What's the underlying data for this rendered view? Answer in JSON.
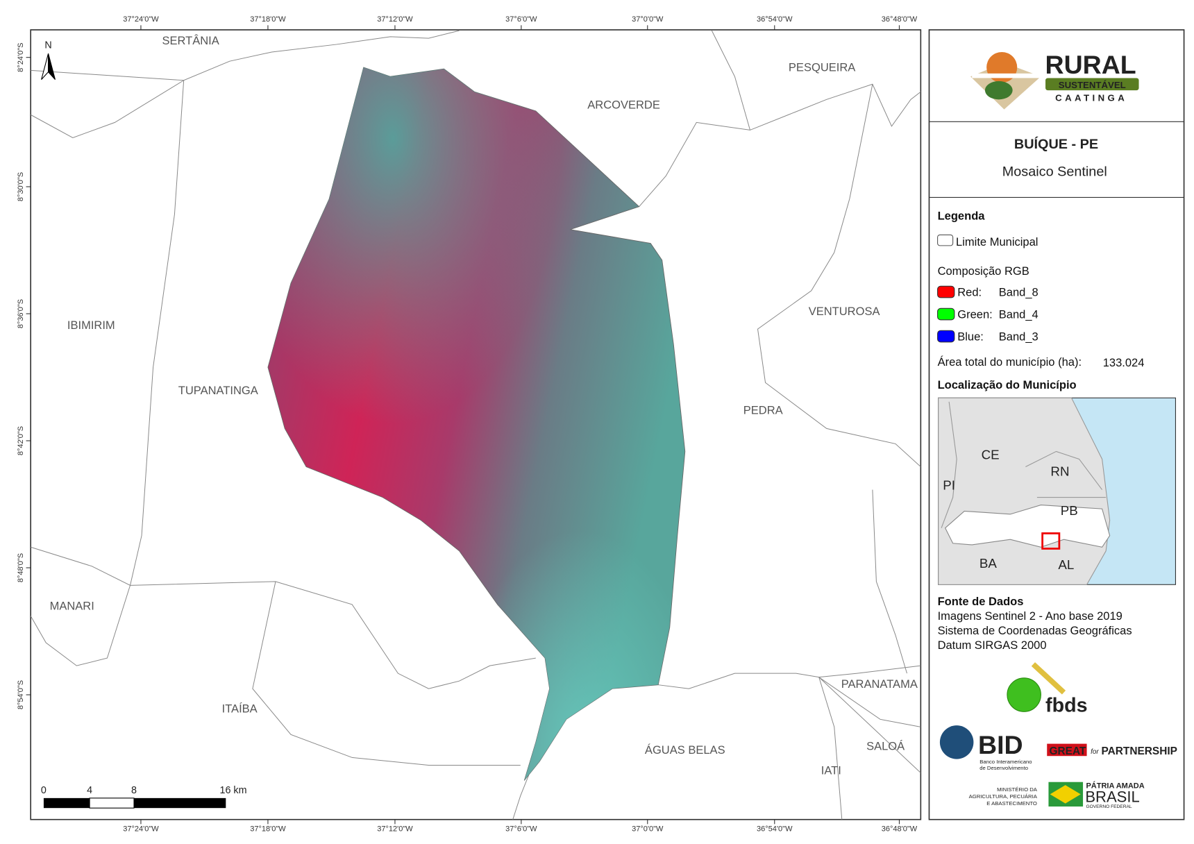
{
  "map": {
    "north_arrow": "N",
    "top_coordinates": [
      "37°24'0\"W",
      "37°18'0\"W",
      "37°12'0\"W",
      "37°6'0\"W",
      "37°0'0\"W",
      "36°54'0\"W",
      "36°48'0\"W"
    ],
    "bottom_coordinates": [
      "37°24'0\"W",
      "37°18'0\"W",
      "37°12'0\"W",
      "37°6'0\"W",
      "37°0'0\"W",
      "36°54'0\"W",
      "36°48'0\"W"
    ],
    "left_coordinates": [
      "8°24'0\"S",
      "8°30'0\"S",
      "8°36'0\"S",
      "8°42'0\"S",
      "8°48'0\"S",
      "8°54'0\"S"
    ],
    "place_labels": [
      "SERTÂNIA",
      "PESQUEIRA",
      "ARCOVERDE",
      "IBIMIRIM",
      "VENTUROSA",
      "TUPANATINGA",
      "PEDRA",
      "MANARI",
      "PARANATAMA",
      "ITAÍBA",
      "ÁGUAS BELAS",
      "SALOÁ",
      "IATI"
    ],
    "scale_bar": [
      "0",
      "4",
      "8",
      "16 km"
    ]
  },
  "panel": {
    "logo": {
      "title": "RURAL",
      "band": "SUSTENTÁVEL",
      "subtitle": "CAATINGA"
    },
    "title": "BUÍQUE - PE",
    "subtitle": "Mosaico Sentinel",
    "legend": {
      "heading": "Legenda",
      "boundary": "Limite Municipal",
      "composition": "Composição RGB",
      "bands": [
        {
          "channel": "Red:",
          "band": "Band_8",
          "color": "#ff0000"
        },
        {
          "channel": "Green:",
          "band": "Band_4",
          "color": "#00ff00"
        },
        {
          "channel": "Blue:",
          "band": "Band_3",
          "color": "#0000ff"
        }
      ],
      "area_label": "Área total do município (ha):",
      "area_value": "133.024"
    },
    "location": {
      "heading": "Localização do Município",
      "states": [
        "CE",
        "RN",
        "PI",
        "PB",
        "BA",
        "AL"
      ]
    },
    "sources": {
      "heading": "Fonte de Dados",
      "lines": [
        "Imagens Sentinel 2 - Ano base 2019",
        "Sistema de Coordenadas Geográficas",
        "Datum SIRGAS 2000"
      ]
    },
    "partners": {
      "fbds": "fbds",
      "bid": "BID",
      "bid_sub": [
        "Banco Interamericano",
        "de Desenvolvimento"
      ],
      "great": "GREAT",
      "for": "for",
      "partnership": "PARTNERSHIP",
      "ministry": [
        "MINISTÉRIO DA",
        "AGRICULTURA, PECUÁRIA",
        "E ABASTECIMENTO"
      ],
      "brasil_top": "PÁTRIA AMADA",
      "brasil": "BRASIL",
      "brasil_sub": "GOVERNO FEDERAL"
    }
  }
}
